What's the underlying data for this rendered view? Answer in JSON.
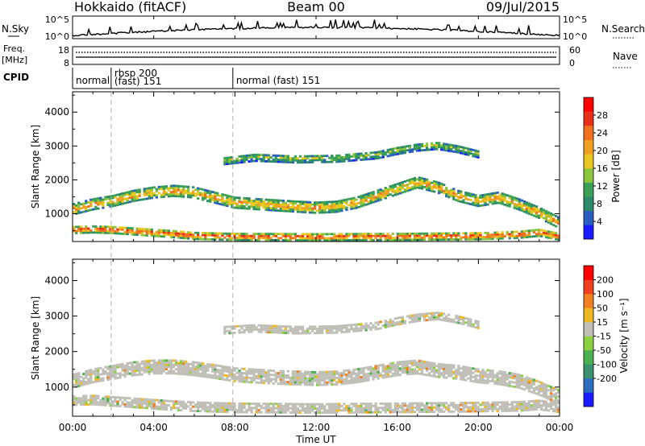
{
  "header": {
    "station": "Hokkaido (fitACF)",
    "beam": "Beam 00",
    "date": "09/Jul/2015"
  },
  "noise_panel": {
    "left_label": "N.Sky",
    "right_label": "N.Search",
    "left_ticks": [
      "10^5",
      "10^0"
    ],
    "right_ticks": [
      "10^5",
      "10^0"
    ]
  },
  "freq_panel": {
    "left_label_1": "Freq.",
    "left_label_2": "[MHz]",
    "right_label": "Nave",
    "left_ticks": [
      "18",
      "8"
    ],
    "right_ticks": [
      "60",
      "0"
    ]
  },
  "cpid": {
    "label": "CPID",
    "segments": [
      {
        "start_hour": 0,
        "text": "normal"
      },
      {
        "start_hour": 1.9,
        "text": "rbsp 200",
        "text2": "(fast) 151"
      },
      {
        "start_hour": 7.9,
        "text": "normal (fast) 151"
      }
    ]
  },
  "x_axis": {
    "label": "Time UT",
    "range_hours": [
      0,
      24
    ],
    "tick_labels": [
      "00:00",
      "04:00",
      "08:00",
      "12:00",
      "16:00",
      "20:00",
      "00:00"
    ],
    "tick_hours": [
      0,
      4,
      8,
      12,
      16,
      20,
      24
    ]
  },
  "mode_change_hours": [
    1.9,
    7.9
  ],
  "chart_data": [
    {
      "type": "heatmap",
      "parameter": "power",
      "ylabel": "Slant Range [km]",
      "ylim": [
        180,
        4600
      ],
      "yticks": [
        1000,
        2000,
        3000,
        4000
      ],
      "colorbar": {
        "label": "Power [dB]",
        "range": [
          0,
          32
        ],
        "tick_labels": [
          "4",
          "8",
          "12",
          "16",
          "20",
          "24",
          "28"
        ],
        "tick_values": [
          4,
          8,
          12,
          16,
          20,
          24,
          28
        ],
        "colors": [
          "#1a1aff",
          "#2a5fbf",
          "#2c8a6a",
          "#3aa055",
          "#8cc43c",
          "#e8c820",
          "#f0a020",
          "#f07020",
          "#e83018",
          "#ff0000"
        ]
      },
      "bands": [
        {
          "name": "near-range",
          "points": [
            [
              0,
              500
            ],
            [
              1,
              520
            ],
            [
              2,
              500
            ],
            [
              3,
              460
            ],
            [
              4,
              420
            ],
            [
              5,
              380
            ],
            [
              6,
              330
            ],
            [
              8,
              300
            ],
            [
              12,
              290
            ],
            [
              16,
              300
            ],
            [
              20,
              320
            ],
            [
              22,
              360
            ],
            [
              23,
              420
            ],
            [
              24,
              300
            ]
          ],
          "width": 200,
          "level": 28
        },
        {
          "name": "main",
          "points": [
            [
              0,
              1100
            ],
            [
              1,
              1250
            ],
            [
              2,
              1350
            ],
            [
              3,
              1500
            ],
            [
              4,
              1600
            ],
            [
              5,
              1650
            ],
            [
              6,
              1600
            ],
            [
              7,
              1450
            ],
            [
              8,
              1300
            ],
            [
              10,
              1220
            ],
            [
              12,
              1150
            ],
            [
              13,
              1180
            ],
            [
              14,
              1300
            ],
            [
              15,
              1500
            ],
            [
              16,
              1700
            ],
            [
              17,
              1900
            ],
            [
              18,
              1750
            ],
            [
              19,
              1500
            ],
            [
              20,
              1350
            ],
            [
              21,
              1450
            ],
            [
              22,
              1250
            ],
            [
              23,
              1000
            ],
            [
              24,
              700
            ]
          ],
          "width": 300,
          "level": 22
        },
        {
          "name": "far",
          "points": [
            [
              7.5,
              2550
            ],
            [
              9,
              2650
            ],
            [
              11,
              2600
            ],
            [
              13,
              2620
            ],
            [
              15,
              2720
            ],
            [
              16,
              2850
            ],
            [
              17,
              2950
            ],
            [
              18,
              3000
            ],
            [
              19,
              2900
            ],
            [
              20,
              2750
            ]
          ],
          "width": 230,
          "level": 14
        }
      ]
    },
    {
      "type": "heatmap",
      "parameter": "velocity",
      "ylabel": "Slant Range [km]",
      "ylim": [
        180,
        4600
      ],
      "yticks": [
        1000,
        2000,
        3000,
        4000
      ],
      "colorbar": {
        "label": "Velocity [m s⁻¹]",
        "range": [
          -250,
          250
        ],
        "tick_labels": [
          "200",
          "100",
          "50",
          "15",
          "-15",
          "-50",
          "-100",
          "-200"
        ],
        "tick_values": [
          200,
          100,
          50,
          15,
          -15,
          -50,
          -100,
          -200
        ],
        "colors": [
          "#1a1aff",
          "#2c6fc0",
          "#3a9070",
          "#4ab050",
          "#8cd040",
          "#c0c0b8",
          "#f0b820",
          "#f08020",
          "#f04020",
          "#ff0000"
        ]
      },
      "bands": [
        {
          "name": "near-range",
          "points": [
            [
              0,
              600
            ],
            [
              1,
              620
            ],
            [
              2,
              580
            ],
            [
              3,
              540
            ],
            [
              4,
              500
            ],
            [
              5,
              460
            ],
            [
              6,
              430
            ],
            [
              8,
              400
            ],
            [
              12,
              380
            ],
            [
              16,
              400
            ],
            [
              20,
              420
            ],
            [
              22,
              440
            ],
            [
              23,
              480
            ],
            [
              24,
              400
            ]
          ],
          "width": 260,
          "level": 0
        },
        {
          "name": "main",
          "points": [
            [
              0,
              1150
            ],
            [
              1,
              1300
            ],
            [
              2,
              1400
            ],
            [
              3,
              1500
            ],
            [
              4,
              1550
            ],
            [
              5,
              1550
            ],
            [
              6,
              1500
            ],
            [
              7,
              1420
            ],
            [
              8,
              1330
            ],
            [
              10,
              1260
            ],
            [
              12,
              1220
            ],
            [
              13,
              1240
            ],
            [
              14,
              1300
            ],
            [
              15,
              1400
            ],
            [
              16,
              1500
            ],
            [
              17,
              1550
            ],
            [
              18,
              1450
            ],
            [
              19,
              1400
            ],
            [
              20,
              1300
            ],
            [
              21,
              1250
            ],
            [
              22,
              1150
            ],
            [
              23,
              950
            ],
            [
              24,
              700
            ]
          ],
          "width": 380,
          "level": 0
        },
        {
          "name": "far",
          "points": [
            [
              7.5,
              2600
            ],
            [
              9,
              2650
            ],
            [
              11,
              2600
            ],
            [
              13,
              2620
            ],
            [
              15,
              2720
            ],
            [
              16,
              2850
            ],
            [
              17,
              2950
            ],
            [
              18,
              3000
            ],
            [
              19,
              2900
            ],
            [
              20,
              2750
            ]
          ],
          "width": 230,
          "level": 0
        }
      ]
    }
  ]
}
